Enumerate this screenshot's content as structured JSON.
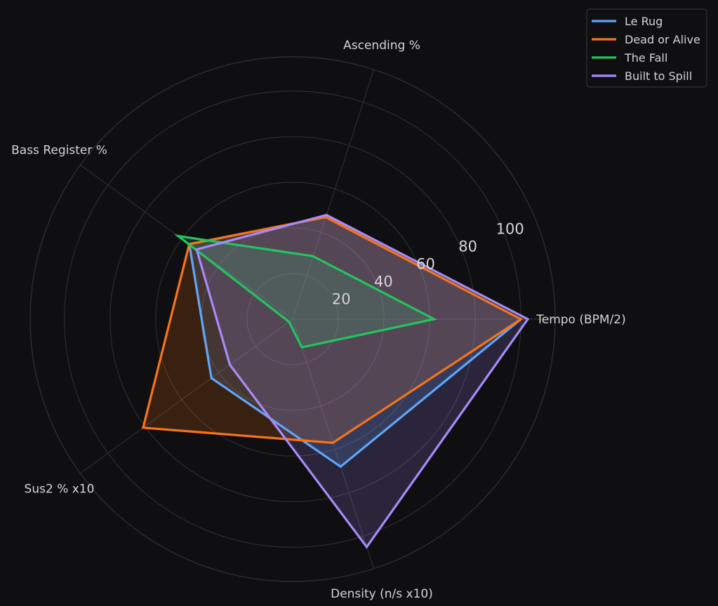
{
  "chart_data": {
    "type": "radar",
    "axes": [
      "Tempo (BPM/2)",
      "Ascending %",
      "Bass Register %",
      "Sus2 % x10",
      "Density (n/s x10)"
    ],
    "r_ticks": [
      20,
      40,
      60,
      80,
      100
    ],
    "r_max": 115,
    "grid": true,
    "legend_position": "top-right",
    "series": [
      {
        "name": "Le Rug",
        "color": "#60a5fa",
        "values": [
          100,
          47,
          56,
          44,
          68
        ]
      },
      {
        "name": "Dead or Alive",
        "color": "#f97316",
        "values": [
          100,
          47,
          56,
          81,
          57
        ]
      },
      {
        "name": "The Fall",
        "color": "#22c55e",
        "values": [
          62,
          29,
          62,
          2,
          13
        ]
      },
      {
        "name": "Built to Spill",
        "color": "#a78bfa",
        "values": [
          103,
          48,
          52,
          34,
          105
        ]
      }
    ]
  }
}
